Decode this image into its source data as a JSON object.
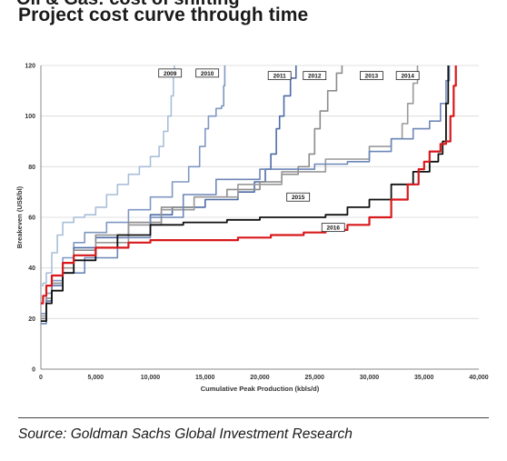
{
  "header": {
    "title": "Project cost curve through time"
  },
  "footer": {
    "source": "Source: Goldman Sachs Global Investment Research"
  },
  "chart_data": {
    "type": "line",
    "title": "Project cost curve through time",
    "xlabel": "Cumulative Peak Production (kbls/d)",
    "ylabel": "Breakeven (US$/bl)",
    "xlim": [
      0,
      40000
    ],
    "ylim": [
      0,
      120
    ],
    "xticks": [
      0,
      5000,
      10000,
      15000,
      20000,
      25000,
      30000,
      35000,
      40000
    ],
    "xtick_labels": [
      "0",
      "5,000",
      "10,000",
      "15,000",
      "20,000",
      "25,000",
      "30,000",
      "35,000",
      "40,000"
    ],
    "yticks": [
      0,
      20,
      40,
      60,
      80,
      100,
      120
    ],
    "ytick_labels": [
      "0",
      "20",
      "40",
      "60",
      "80",
      "100",
      "120"
    ],
    "grid": "horizontal",
    "legend": "inline labels",
    "series": [
      {
        "name": "2009",
        "color": "#a9bfd9",
        "stroke_width": 1.6,
        "points": [
          [
            0,
            33
          ],
          [
            200,
            34
          ],
          [
            500,
            38
          ],
          [
            1000,
            46
          ],
          [
            1500,
            53
          ],
          [
            2000,
            58
          ],
          [
            3000,
            60
          ],
          [
            4000,
            61
          ],
          [
            5000,
            64
          ],
          [
            6000,
            69
          ],
          [
            7000,
            73
          ],
          [
            8000,
            77
          ],
          [
            9000,
            80
          ],
          [
            10000,
            84
          ],
          [
            10800,
            88
          ],
          [
            11200,
            94
          ],
          [
            11600,
            100
          ],
          [
            11900,
            108
          ],
          [
            12100,
            116
          ],
          [
            12200,
            120
          ]
        ]
      },
      {
        "name": "2010",
        "color": "#7f98c2",
        "stroke_width": 1.6,
        "points": [
          [
            0,
            22
          ],
          [
            500,
            30
          ],
          [
            1000,
            35
          ],
          [
            2000,
            44
          ],
          [
            3000,
            50
          ],
          [
            4000,
            54
          ],
          [
            6000,
            58
          ],
          [
            8000,
            63
          ],
          [
            10000,
            68
          ],
          [
            12000,
            74
          ],
          [
            13500,
            80
          ],
          [
            14500,
            88
          ],
          [
            15000,
            95
          ],
          [
            15300,
            100
          ],
          [
            16000,
            103
          ],
          [
            16500,
            104
          ],
          [
            16700,
            112
          ],
          [
            16800,
            120
          ]
        ]
      },
      {
        "name": "2011",
        "color": "#4d6ba5",
        "stroke_width": 1.6,
        "points": [
          [
            0,
            20
          ],
          [
            500,
            27
          ],
          [
            1000,
            33
          ],
          [
            2000,
            42
          ],
          [
            3000,
            48
          ],
          [
            5000,
            52
          ],
          [
            8000,
            57
          ],
          [
            10000,
            61
          ],
          [
            12000,
            64
          ],
          [
            15000,
            67
          ],
          [
            18000,
            70
          ],
          [
            19500,
            74
          ],
          [
            20500,
            79
          ],
          [
            21000,
            85
          ],
          [
            21500,
            95
          ],
          [
            21800,
            100
          ],
          [
            22200,
            108
          ],
          [
            22800,
            115
          ],
          [
            23300,
            120
          ]
        ]
      },
      {
        "name": "2012",
        "color": "#8c8c8c",
        "stroke_width": 1.6,
        "points": [
          [
            0,
            20
          ],
          [
            500,
            28
          ],
          [
            1000,
            34
          ],
          [
            2000,
            42
          ],
          [
            3000,
            47
          ],
          [
            5000,
            53
          ],
          [
            8000,
            58
          ],
          [
            11000,
            64
          ],
          [
            14000,
            68
          ],
          [
            17000,
            71
          ],
          [
            20000,
            74
          ],
          [
            22000,
            77
          ],
          [
            23500,
            80
          ],
          [
            24500,
            85
          ],
          [
            25000,
            95
          ],
          [
            25500,
            102
          ],
          [
            26200,
            110
          ],
          [
            27000,
            117
          ],
          [
            27500,
            120
          ]
        ]
      },
      {
        "name": "2013",
        "color": "#999999",
        "stroke_width": 1.6,
        "points": [
          [
            0,
            21
          ],
          [
            500,
            26
          ],
          [
            1000,
            31
          ],
          [
            2000,
            40
          ],
          [
            3000,
            45
          ],
          [
            5000,
            50
          ],
          [
            8000,
            57
          ],
          [
            11000,
            63
          ],
          [
            14000,
            68
          ],
          [
            18000,
            73
          ],
          [
            22000,
            78
          ],
          [
            26000,
            83
          ],
          [
            30000,
            88
          ],
          [
            32000,
            91
          ],
          [
            33000,
            97
          ],
          [
            33500,
            105
          ],
          [
            34000,
            113
          ],
          [
            34400,
            120
          ]
        ]
      },
      {
        "name": "2014",
        "color": "#6d87b8",
        "stroke_width": 1.6,
        "points": [
          [
            0,
            18
          ],
          [
            500,
            27
          ],
          [
            1000,
            33
          ],
          [
            2000,
            38
          ],
          [
            4000,
            44
          ],
          [
            7000,
            52
          ],
          [
            10000,
            60
          ],
          [
            13000,
            69
          ],
          [
            16000,
            75
          ],
          [
            20000,
            79
          ],
          [
            25000,
            81
          ],
          [
            28000,
            82
          ],
          [
            30000,
            86
          ],
          [
            32000,
            91
          ],
          [
            34000,
            95
          ],
          [
            35500,
            98
          ],
          [
            36500,
            105
          ],
          [
            37000,
            114
          ],
          [
            37300,
            120
          ]
        ]
      },
      {
        "name": "2015",
        "color": "#111111",
        "stroke_width": 1.8,
        "points": [
          [
            0,
            19
          ],
          [
            500,
            26
          ],
          [
            1000,
            31
          ],
          [
            2000,
            38
          ],
          [
            3000,
            43
          ],
          [
            5000,
            48
          ],
          [
            7000,
            53
          ],
          [
            10000,
            57
          ],
          [
            13000,
            58
          ],
          [
            15000,
            58
          ],
          [
            17000,
            59
          ],
          [
            20000,
            60
          ],
          [
            23000,
            60
          ],
          [
            26000,
            61
          ],
          [
            28000,
            64
          ],
          [
            30000,
            67
          ],
          [
            32000,
            73
          ],
          [
            34000,
            78
          ],
          [
            35500,
            82
          ],
          [
            36300,
            85
          ],
          [
            36700,
            90
          ],
          [
            37000,
            105
          ],
          [
            37200,
            120
          ]
        ]
      },
      {
        "name": "2016",
        "color": "#d7191c",
        "stroke_width": 2.2,
        "points": [
          [
            0,
            26
          ],
          [
            200,
            29
          ],
          [
            500,
            33
          ],
          [
            1000,
            37
          ],
          [
            2000,
            42
          ],
          [
            3000,
            45
          ],
          [
            5000,
            48
          ],
          [
            8000,
            50
          ],
          [
            10000,
            51
          ],
          [
            12000,
            51
          ],
          [
            15000,
            51
          ],
          [
            18000,
            52
          ],
          [
            21000,
            53
          ],
          [
            24000,
            54
          ],
          [
            26000,
            55
          ],
          [
            28000,
            57
          ],
          [
            30000,
            60
          ],
          [
            32000,
            67
          ],
          [
            33500,
            73
          ],
          [
            34500,
            79
          ],
          [
            35000,
            82
          ],
          [
            35500,
            86
          ],
          [
            36500,
            89
          ],
          [
            37000,
            90
          ],
          [
            37400,
            100
          ],
          [
            37700,
            112
          ],
          [
            37900,
            120
          ]
        ]
      }
    ],
    "labels": [
      {
        "text": "2009",
        "x": 11800,
        "y": 117
      },
      {
        "text": "2010",
        "x": 15200,
        "y": 117
      },
      {
        "text": "2011",
        "x": 21800,
        "y": 116
      },
      {
        "text": "2012",
        "x": 25000,
        "y": 116
      },
      {
        "text": "2013",
        "x": 30200,
        "y": 116
      },
      {
        "text": "2014",
        "x": 33500,
        "y": 116
      },
      {
        "text": "2015",
        "x": 23500,
        "y": 68
      },
      {
        "text": "2016",
        "x": 26700,
        "y": 56
      }
    ]
  }
}
